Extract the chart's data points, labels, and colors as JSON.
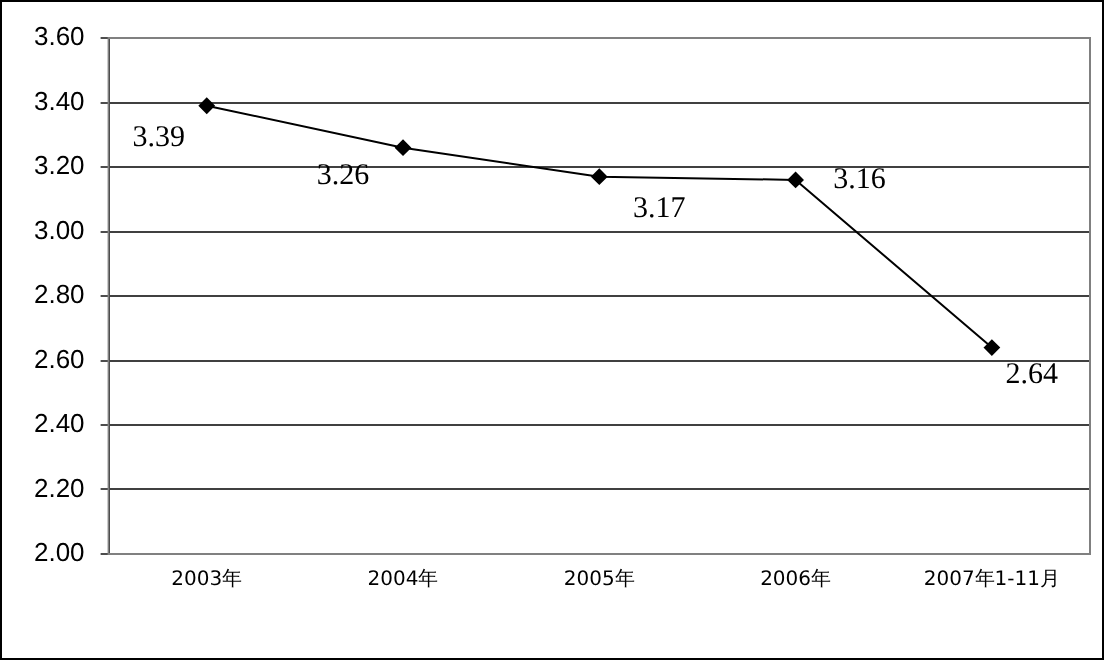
{
  "chart_data": {
    "type": "line",
    "categories": [
      "2003年",
      "2004年",
      "2005年",
      "2006年",
      "2007年1-11月"
    ],
    "series": [
      {
        "color": "#000000",
        "values": [
          3.39,
          3.26,
          3.17,
          3.16,
          2.64
        ]
      }
    ],
    "ylim": [
      2.0,
      3.6
    ],
    "yticks": [
      {
        "value": 2.0,
        "label": "2.00"
      },
      {
        "value": 2.2,
        "label": "2.20"
      },
      {
        "value": 2.4,
        "label": "2.40"
      },
      {
        "value": 2.6,
        "label": "2.60"
      },
      {
        "value": 2.8,
        "label": "2.80"
      },
      {
        "value": 3.0,
        "label": "3.00"
      },
      {
        "value": 3.2,
        "label": "3.20"
      },
      {
        "value": 3.4,
        "label": "3.40"
      },
      {
        "value": 3.6,
        "label": "3.60"
      }
    ],
    "grid": "y",
    "legend": false,
    "marker": "diamond",
    "line_style": "solid",
    "data_labels": true
  }
}
